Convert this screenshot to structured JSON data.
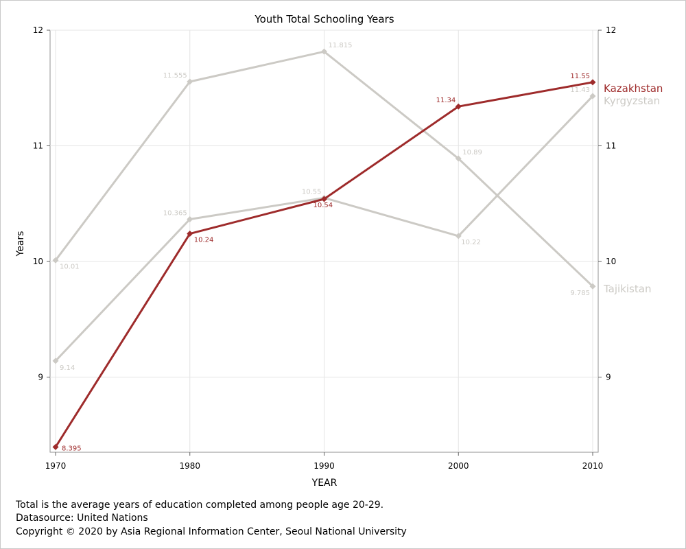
{
  "chart_data": {
    "type": "line",
    "title": "Youth Total Schooling Years",
    "xlabel": "YEAR",
    "ylabel": "Years",
    "x": [
      1970,
      1980,
      1990,
      2000,
      2010
    ],
    "x_ticks": [
      "1970",
      "1980",
      "1990",
      "2000",
      "2010"
    ],
    "y_ticks": [
      "9",
      "10",
      "11",
      "12"
    ],
    "ylim": [
      8.35,
      12.0
    ],
    "grid": true,
    "series": [
      {
        "name": "Kyrgyzstan",
        "color": "#cccac5",
        "values": [
          9.14,
          10.365,
          10.55,
          10.22,
          11.43
        ],
        "labels": [
          "9.14",
          "10.365",
          "10.55",
          "10.22",
          "11.43"
        ]
      },
      {
        "name": "Tajikistan",
        "color": "#cccac5",
        "values": [
          10.01,
          11.555,
          11.815,
          10.89,
          9.785
        ],
        "labels": [
          "10.01",
          "11.555",
          "11.815",
          "10.89",
          "9.785"
        ]
      },
      {
        "name": "Kazakhstan",
        "color": "#9e2b2b",
        "values": [
          8.395,
          10.24,
          10.54,
          11.34,
          11.55
        ],
        "labels": [
          "8.395",
          "10.24",
          "10.54",
          "11.34",
          "11.55"
        ]
      }
    ]
  },
  "footnotes": {
    "line1": "Total is the average years of education completed among people age 20-29.",
    "line2": "Datasource: United Nations",
    "line3": "Copyright © 2020 by Asia Regional Information Center, Seoul National University"
  }
}
